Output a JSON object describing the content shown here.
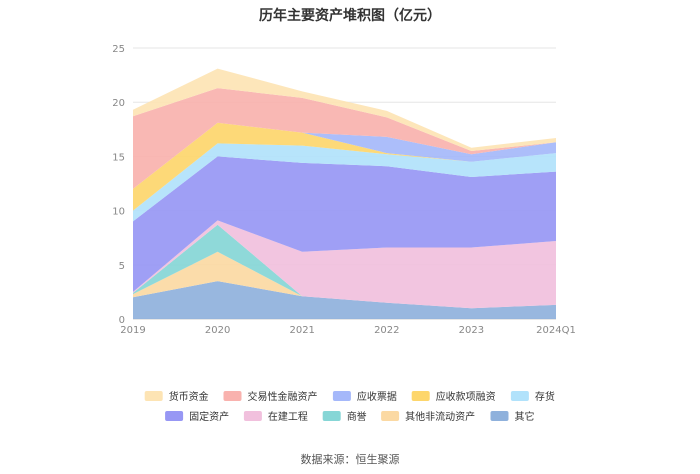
{
  "chart_data": {
    "type": "area",
    "stacked": true,
    "title": "历年主要资产堆积图（亿元）",
    "categories": [
      "2019",
      "2020",
      "2021",
      "2022",
      "2023",
      "2024Q1"
    ],
    "ylim": [
      0,
      25
    ],
    "yticks": [
      "0",
      "5",
      "10",
      "15",
      "20",
      "25"
    ],
    "grid": true,
    "legend_position": "bottom",
    "series": [
      {
        "name": "其它",
        "color": "#8fb1dc",
        "values": [
          2.0,
          3.5,
          2.1,
          1.5,
          1.0,
          1.3
        ]
      },
      {
        "name": "其他非流动资产",
        "color": "#fbd9a3",
        "values": [
          0.3,
          2.7,
          0.0,
          0.0,
          0.0,
          0.0
        ]
      },
      {
        "name": "商誉",
        "color": "#86d6d6",
        "values": [
          0.1,
          2.5,
          0.0,
          0.0,
          0.0,
          0.0
        ]
      },
      {
        "name": "在建工程",
        "color": "#f1c0dd",
        "values": [
          0.1,
          0.4,
          4.1,
          5.1,
          5.6,
          5.9
        ]
      },
      {
        "name": "固定资产",
        "color": "#9797f4",
        "values": [
          6.5,
          5.9,
          8.2,
          7.5,
          6.5,
          6.4
        ]
      },
      {
        "name": "存货",
        "color": "#b1e2fb",
        "values": [
          1.0,
          1.2,
          1.6,
          1.1,
          1.4,
          1.7
        ]
      },
      {
        "name": "应收款项融资",
        "color": "#fdd66c",
        "values": [
          2.0,
          1.9,
          1.2,
          0.1,
          0.0,
          0.0
        ]
      },
      {
        "name": "应收票据",
        "color": "#a5b8fa",
        "values": [
          0.0,
          0.0,
          0.0,
          1.5,
          0.7,
          1.0
        ]
      },
      {
        "name": "交易性金融资产",
        "color": "#f9b2ae",
        "values": [
          6.7,
          3.2,
          3.2,
          1.8,
          0.3,
          0.0
        ]
      },
      {
        "name": "货币资金",
        "color": "#fde4b4",
        "values": [
          0.6,
          1.8,
          0.6,
          0.6,
          0.3,
          0.4
        ]
      }
    ],
    "legend_order": [
      "货币资金",
      "交易性金融资产",
      "应收票据",
      "应收款项融资",
      "存货",
      "固定资产",
      "在建工程",
      "商誉",
      "其他非流动资产",
      "其它"
    ]
  },
  "source_note": "数据来源：恒生聚源"
}
